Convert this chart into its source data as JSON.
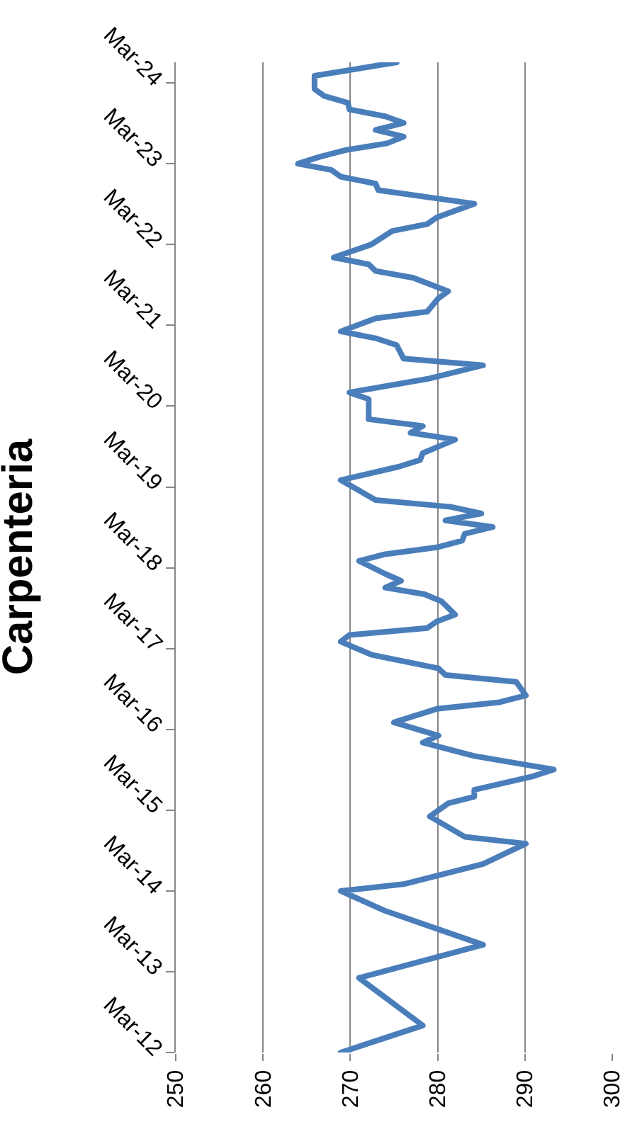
{
  "chart_data": {
    "type": "line",
    "orientation": "horizontal",
    "title": "Carpenteria",
    "color": "#4a7ebb",
    "grid": "x",
    "marker": "none",
    "x": [
      "2012-03",
      "2012-07",
      "2013-02",
      "2013-07",
      "2013-12",
      "2014-03",
      "2014-04",
      "2014-07",
      "2014-10",
      "2014-11",
      "2015-02",
      "2015-04",
      "2015-05",
      "2015-06",
      "2015-08",
      "2015-09",
      "2015-11",
      "2016-01",
      "2016-02",
      "2016-04",
      "2016-06",
      "2016-07",
      "2016-08",
      "2016-10",
      "2016-11",
      "2016-12",
      "2017-02",
      "2017-04",
      "2017-05",
      "2017-06",
      "2017-07",
      "2017-08",
      "2017-09",
      "2017-10",
      "2017-11",
      "2017-12",
      "2018-01",
      "2018-02",
      "2018-04",
      "2018-05",
      "2018-06",
      "2018-07",
      "2018-08",
      "2018-09",
      "2018-10",
      "2018-11",
      "2018-12",
      "2019-01",
      "2019-04",
      "2019-06",
      "2019-07",
      "2019-08",
      "2019-10",
      "2019-11",
      "2019-12",
      "2020-01",
      "2020-04",
      "2020-05",
      "2020-07",
      "2020-09",
      "2020-10",
      "2020-12",
      "2021-01",
      "2021-02",
      "2021-04",
      "2021-05",
      "2021-07",
      "2021-08",
      "2021-10",
      "2021-11",
      "2021-12",
      "2022-01",
      "2022-03",
      "2022-05",
      "2022-06",
      "2022-07",
      "2022-09",
      "2022-11",
      "2022-12",
      "2023-01",
      "2023-02",
      "2023-03",
      "2023-04",
      "2023-05",
      "2023-06",
      "2023-07",
      "2023-08",
      "2023-09",
      "2023-10",
      "2023-11",
      "2023-12",
      "2024-01",
      "2024-02",
      "2024-04",
      "2024-06"
    ],
    "values": [
      268.9,
      278.3,
      271.0,
      285.2,
      274.0,
      268.9,
      276.1,
      285.2,
      290.1,
      283.1,
      279.1,
      281.2,
      284.2,
      284.2,
      290.9,
      293.3,
      284.2,
      278.3,
      280.1,
      275.0,
      279.9,
      287.1,
      290.1,
      289.0,
      280.9,
      280.1,
      272.4,
      268.9,
      269.9,
      278.8,
      279.9,
      282.0,
      281.2,
      280.4,
      278.5,
      274.0,
      275.8,
      274.0,
      271.0,
      274.0,
      279.9,
      282.8,
      283.1,
      286.3,
      280.9,
      285.0,
      281.5,
      272.9,
      268.9,
      275.6,
      278.0,
      278.3,
      282.0,
      276.9,
      278.3,
      272.1,
      272.1,
      269.9,
      278.8,
      285.2,
      276.1,
      275.3,
      272.9,
      268.9,
      272.9,
      278.8,
      280.1,
      281.2,
      277.2,
      272.9,
      272.1,
      268.1,
      272.4,
      274.8,
      278.8,
      279.9,
      284.2,
      273.2,
      272.9,
      268.9,
      267.8,
      264.0,
      266.5,
      269.4,
      274.2,
      276.1,
      272.9,
      276.1,
      274.0,
      269.9,
      269.7,
      267.0,
      265.9,
      265.9,
      275.3
    ],
    "ylim": [
      "2012-03",
      "2024-06"
    ],
    "yticks": [
      {
        "value": "2012-03",
        "label": "Mar-12"
      },
      {
        "value": "2013-03",
        "label": "Mar-13"
      },
      {
        "value": "2014-03",
        "label": "Mar-14"
      },
      {
        "value": "2015-03",
        "label": "Mar-15"
      },
      {
        "value": "2016-03",
        "label": "Mar-16"
      },
      {
        "value": "2017-03",
        "label": "Mar-17"
      },
      {
        "value": "2018-03",
        "label": "Mar-18"
      },
      {
        "value": "2019-03",
        "label": "Mar-19"
      },
      {
        "value": "2020-03",
        "label": "Mar-20"
      },
      {
        "value": "2021-03",
        "label": "Mar-21"
      },
      {
        "value": "2022-03",
        "label": "Mar-22"
      },
      {
        "value": "2023-03",
        "label": "Mar-23"
      },
      {
        "value": "2024-03",
        "label": "Mar-24"
      }
    ],
    "xlim": [
      250,
      300
    ],
    "xticks": [
      250,
      260,
      270,
      280,
      290,
      300
    ]
  }
}
